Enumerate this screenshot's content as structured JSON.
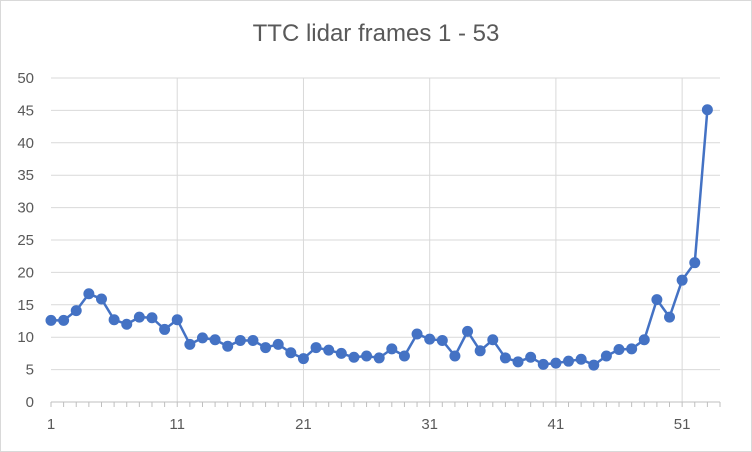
{
  "chart_data": {
    "type": "line",
    "title": "TTC lidar frames 1 - 53",
    "xlabel": "",
    "ylabel": "",
    "x": [
      1,
      2,
      3,
      4,
      5,
      6,
      7,
      8,
      9,
      10,
      11,
      12,
      13,
      14,
      15,
      16,
      17,
      18,
      19,
      20,
      21,
      22,
      23,
      24,
      25,
      26,
      27,
      28,
      29,
      30,
      31,
      32,
      33,
      34,
      35,
      36,
      37,
      38,
      39,
      40,
      41,
      42,
      43,
      44,
      45,
      46,
      47,
      48,
      49,
      50,
      51,
      52,
      53
    ],
    "xticks": [
      1,
      11,
      21,
      31,
      41,
      51
    ],
    "ylim": [
      0,
      50
    ],
    "yticks": [
      0,
      5,
      10,
      15,
      20,
      25,
      30,
      35,
      40,
      45,
      50
    ],
    "grid": true,
    "legend": "none",
    "series": [
      {
        "color": "#4472c4",
        "values": [
          12.6,
          12.6,
          14.1,
          16.7,
          15.9,
          12.7,
          12.0,
          13.1,
          13.0,
          11.2,
          12.7,
          8.9,
          9.9,
          9.6,
          8.6,
          9.5,
          9.5,
          8.4,
          8.9,
          7.6,
          6.7,
          8.4,
          8.0,
          7.5,
          6.9,
          7.1,
          6.8,
          8.2,
          7.1,
          10.5,
          9.7,
          9.5,
          7.1,
          10.9,
          7.9,
          9.6,
          6.8,
          6.2,
          6.9,
          5.8,
          6.0,
          6.3,
          6.6,
          5.7,
          7.1,
          8.1,
          8.2,
          9.6,
          15.8,
          13.1,
          18.8,
          21.5,
          45.1
        ]
      }
    ]
  }
}
